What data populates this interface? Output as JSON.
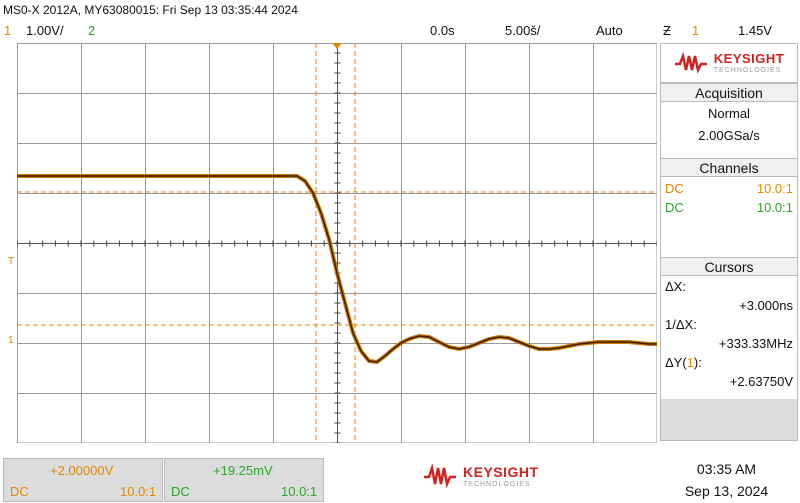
{
  "header": {
    "info": "MS0-X 2012A, MY63080015: Fri Sep 13 03:35:44 2024"
  },
  "status": {
    "ch1_num": "1",
    "ch1_scale": "1.00V/",
    "ch2_num": "2",
    "time_offset": "0.0s",
    "time_scale": "5.00š/",
    "trigger_mode": "Auto",
    "trigger_icon": "Ƶ",
    "trigger_ch": "1",
    "trigger_level": "1.45V"
  },
  "screen": {
    "trigger_marker": "T",
    "ch1_marker": "1"
  },
  "logo": {
    "brand": "KEYSIGHT",
    "sub": "TECHNOLOGIES"
  },
  "acquisition": {
    "title": "Acquisition",
    "mode": "Normal",
    "rate": "2.00GSa/s"
  },
  "channels": {
    "title": "Channels",
    "ch1_coupling": "DC",
    "ch1_probe": "10.0:1",
    "ch2_coupling": "DC",
    "ch2_probe": "10.0:1"
  },
  "cursors": {
    "title": "Cursors",
    "dx_label": "ΔX:",
    "dx_value": "+3.000ns",
    "inv_dx_label": "1/ΔX:",
    "inv_dx_value": "+333.33MHz",
    "dy_label": "ΔY(",
    "dy_ch": "1",
    "dy_label_end": "):",
    "dy_value": "+2.63750V"
  },
  "bottom": {
    "ch1_offset": "+2.00000V",
    "ch1_coupling": "DC",
    "ch1_probe": "10.0:1",
    "ch2_offset": "+19.25mV",
    "ch2_coupling": "DC",
    "ch2_probe": "10.0:1",
    "time": "03:35 AM",
    "date": "Sep 13, 2024"
  },
  "colors": {
    "ch1": "#e08a00",
    "ch2": "#2aa52a",
    "trace": "#5a3000",
    "brand": "#d32020"
  }
}
